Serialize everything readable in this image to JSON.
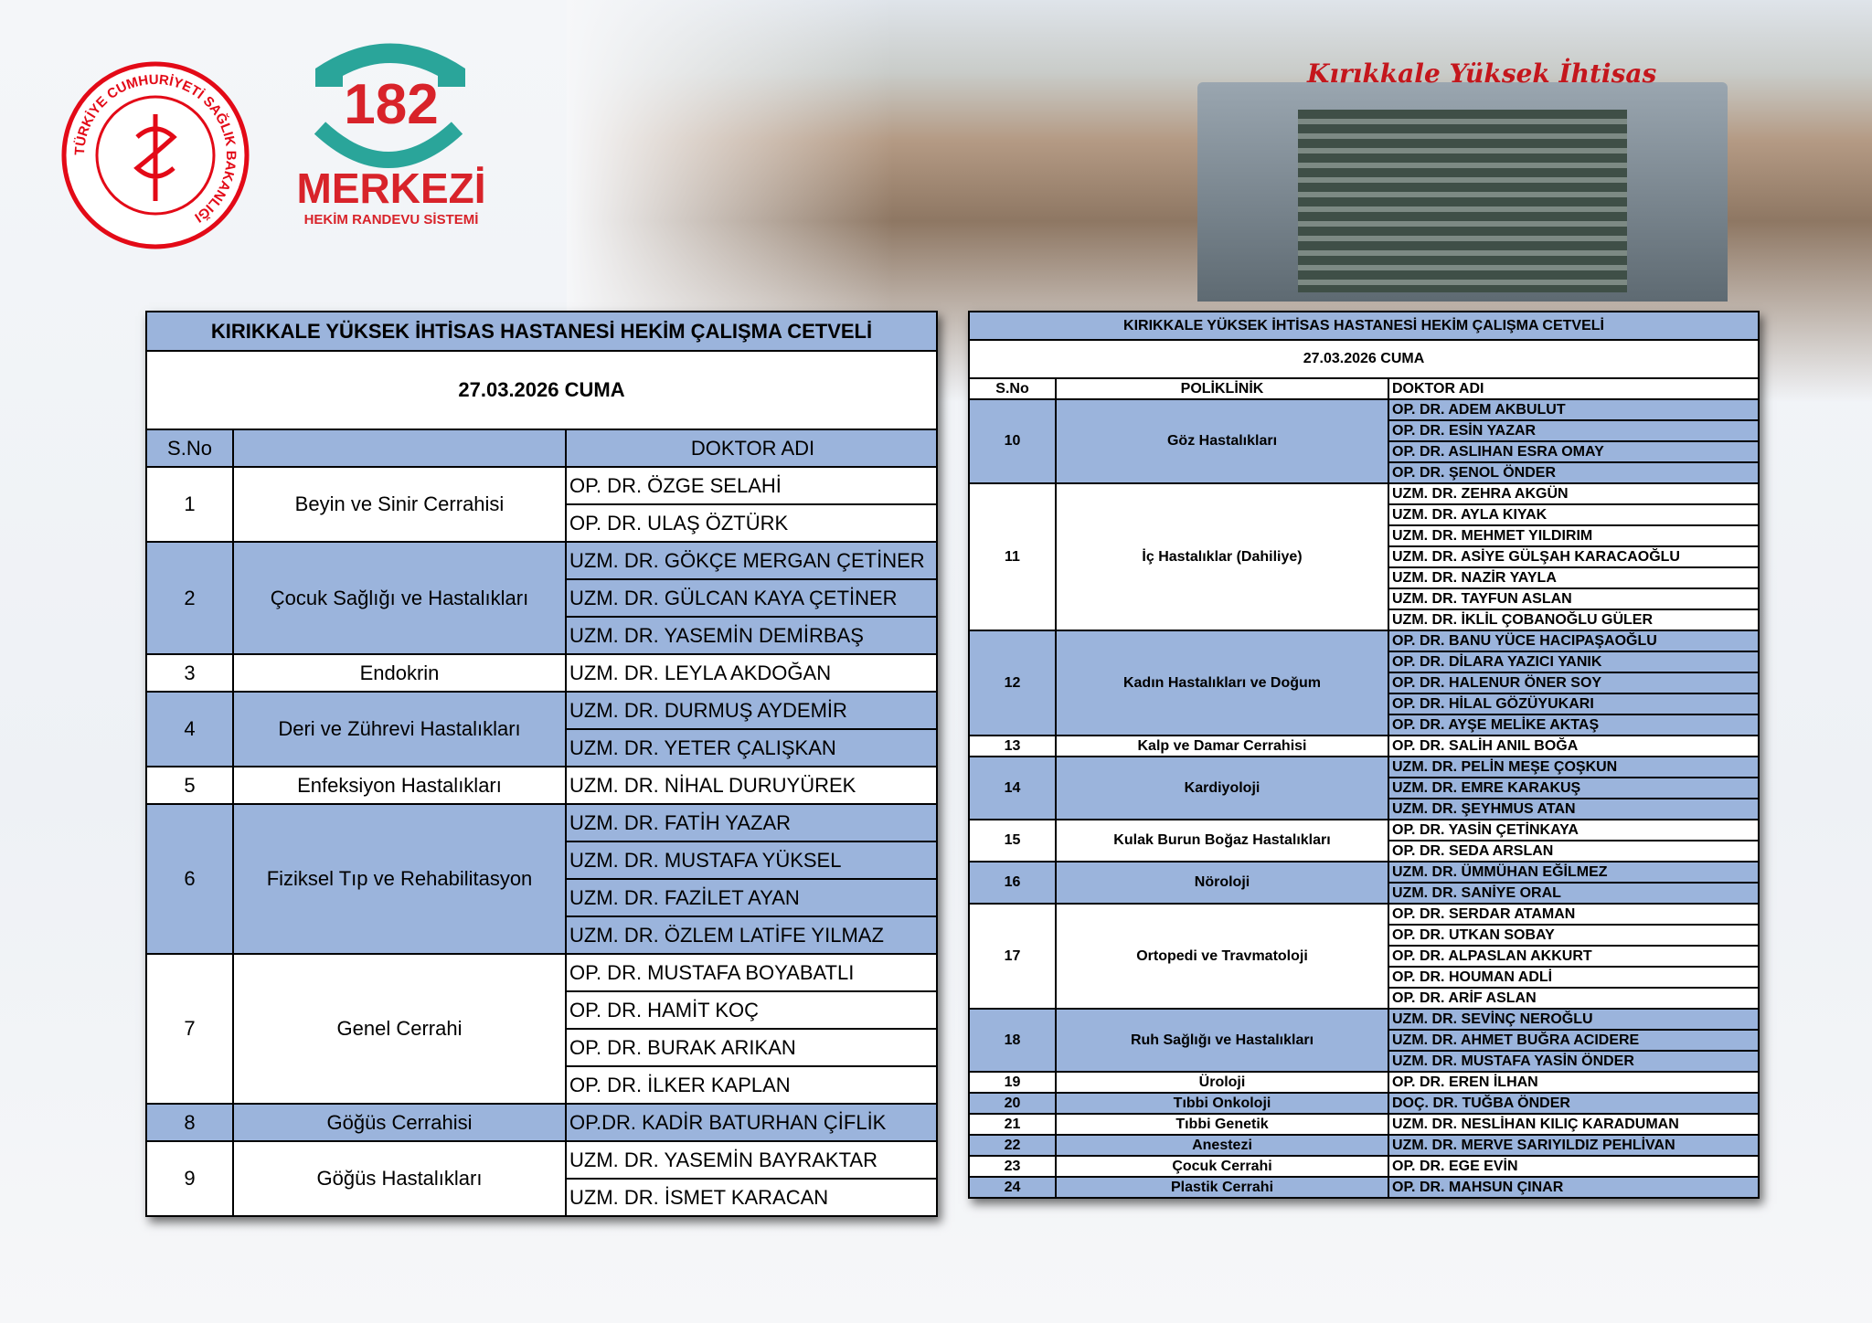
{
  "header": {
    "ministry": "TÜRKİYE CUMHURİYETİ SAĞLIK BAKANLIĞI",
    "number": "182",
    "center": "MERKEZİ",
    "system": "HEKİM RANDEVU SİSTEMİ",
    "sign": "Kırıkkale Yüksek İhtisas"
  },
  "tables": [
    {
      "title": "KIRIKKALE YÜKSEK İHTİSAS HASTANESİ HEKİM ÇALIŞMA CETVELİ",
      "date": "27.03.2026 CUMA",
      "headers": [
        "S.No",
        "DOKTOR ADI"
      ],
      "groups": [
        {
          "no": "1",
          "department": "Beyin ve Sinir Cerrahisi",
          "doctors": [
            "OP. DR. ÖZGE SELAHİ",
            "OP. DR. ULAŞ ÖZTÜRK"
          ]
        },
        {
          "no": "2",
          "department": "Çocuk Sağlığı ve Hastalıkları",
          "doctors": [
            "UZM. DR. GÖKÇE MERGAN ÇETİNER",
            "UZM. DR. GÜLCAN KAYA ÇETİNER",
            "UZM. DR. YASEMİN DEMİRBAŞ"
          ]
        },
        {
          "no": "3",
          "department": "Endokrin",
          "doctors": [
            "UZM. DR. LEYLA AKDOĞAN"
          ]
        },
        {
          "no": "4",
          "department": "Deri ve Zührevi Hastalıkları",
          "doctors": [
            "UZM. DR. DURMUŞ AYDEMİR",
            "UZM. DR. YETER ÇALIŞKAN"
          ]
        },
        {
          "no": "5",
          "department": "Enfeksiyon Hastalıkları",
          "doctors": [
            "UZM. DR. NİHAL DURUYÜREK"
          ]
        },
        {
          "no": "6",
          "department": "Fiziksel Tıp ve Rehabilitasyon",
          "doctors": [
            "UZM. DR. FATİH YAZAR",
            "UZM. DR. MUSTAFA YÜKSEL",
            "UZM. DR. FAZİLET AYAN",
            "UZM. DR. ÖZLEM LATİFE YILMAZ"
          ]
        },
        {
          "no": "7",
          "department": "Genel Cerrahi",
          "doctors": [
            "OP. DR. MUSTAFA BOYABATLI",
            "OP. DR. HAMİT KOÇ",
            "OP. DR. BURAK ARIKAN",
            "OP. DR. İLKER KAPLAN"
          ]
        },
        {
          "no": "8",
          "department": "Göğüs Cerrahisi",
          "doctors": [
            "OP.DR. KADİR BATURHAN ÇİFLİK"
          ]
        },
        {
          "no": "9",
          "department": "Göğüs Hastalıkları",
          "doctors": [
            "UZM. DR. YASEMİN BAYRAKTAR",
            "UZM. DR. İSMET KARACAN"
          ]
        }
      ]
    },
    {
      "title": "KIRIKKALE YÜKSEK İHTİSAS HASTANESİ HEKİM ÇALIŞMA CETVELİ",
      "date": "27.03.2026 CUMA",
      "headers": [
        "S.No",
        "POLİKLİNİK",
        "DOKTOR ADI"
      ],
      "groups": [
        {
          "no": "10",
          "department": "Göz Hastalıkları",
          "doctors": [
            "OP. DR. ADEM AKBULUT",
            "OP. DR. ESİN YAZAR",
            "OP. DR. ASLIHAN ESRA OMAY",
            "OP. DR. ŞENOL ÖNDER"
          ]
        },
        {
          "no": "11",
          "department": "İç Hastalıklar (Dahiliye)",
          "doctors": [
            "UZM. DR. ZEHRA AKGÜN",
            "UZM. DR. AYLA KIYAK",
            "UZM. DR. MEHMET YILDIRIM",
            "UZM. DR. ASİYE GÜLŞAH KARACAOĞLU",
            "UZM. DR. NAZİR YAYLA",
            "UZM. DR. TAYFUN ASLAN",
            "UZM. DR. İKLİL ÇOBANOĞLU GÜLER"
          ]
        },
        {
          "no": "12",
          "department": "Kadın Hastalıkları ve Doğum",
          "doctors": [
            "OP. DR. BANU YÜCE HACIPAŞAOĞLU",
            "OP. DR. DİLARA YAZICI YANIK",
            "OP. DR. HALENUR ÖNER SOY",
            "OP. DR. HİLAL GÖZÜYUKARI",
            "OP. DR. AYŞE MELİKE AKTAŞ"
          ]
        },
        {
          "no": "13",
          "department": "Kalp ve Damar Cerrahisi",
          "doctors": [
            "OP. DR. SALİH ANIL BOĞA"
          ]
        },
        {
          "no": "14",
          "department": "Kardiyoloji",
          "doctors": [
            "UZM. DR. PELİN MEŞE ÇOŞKUN",
            "UZM. DR. EMRE KARAKUŞ",
            "UZM. DR. ŞEYHMUS ATAN"
          ]
        },
        {
          "no": "15",
          "department": "Kulak Burun Boğaz Hastalıkları",
          "doctors": [
            "OP. DR. YASİN ÇETİNKAYA",
            "OP. DR. SEDA ARSLAN"
          ]
        },
        {
          "no": "16",
          "department": "Nöroloji",
          "doctors": [
            "UZM. DR. ÜMMÜHAN EĞİLMEZ",
            "UZM. DR. SANİYE ORAL"
          ]
        },
        {
          "no": "17",
          "department": "Ortopedi ve Travmatoloji",
          "doctors": [
            "OP. DR. SERDAR ATAMAN",
            "OP. DR. UTKAN SOBAY",
            "OP. DR. ALPASLAN AKKURT",
            "OP. DR. HOUMAN ADLİ",
            "OP. DR. ARİF ASLAN"
          ]
        },
        {
          "no": "18",
          "department": "Ruh Sağlığı ve Hastalıkları",
          "doctors": [
            "UZM. DR. SEVİNÇ NEROĞLU",
            "UZM. DR. AHMET BUĞRA ACIDERE",
            "UZM. DR. MUSTAFA YASİN ÖNDER"
          ]
        },
        {
          "no": "19",
          "department": "Üroloji",
          "doctors": [
            "OP. DR. EREN İLHAN"
          ]
        },
        {
          "no": "20",
          "department": "Tıbbi Onkoloji",
          "doctors": [
            "DOÇ. DR. TUĞBA ÖNDER"
          ]
        },
        {
          "no": "21",
          "department": "Tıbbi Genetik",
          "doctors": [
            "UZM. DR. NESLİHAN KILIÇ KARADUMAN"
          ]
        },
        {
          "no": "22",
          "department": "Anestezi",
          "doctors": [
            "UZM. DR. MERVE SARIYILDIZ PEHLİVAN"
          ]
        },
        {
          "no": "23",
          "department": "Çocuk Cerrahi",
          "doctors": [
            "OP. DR. EGE EVİN"
          ]
        },
        {
          "no": "24",
          "department": "Plastik Cerrahi",
          "doctors": [
            "OP. DR. MAHSUN ÇINAR"
          ]
        }
      ]
    }
  ]
}
